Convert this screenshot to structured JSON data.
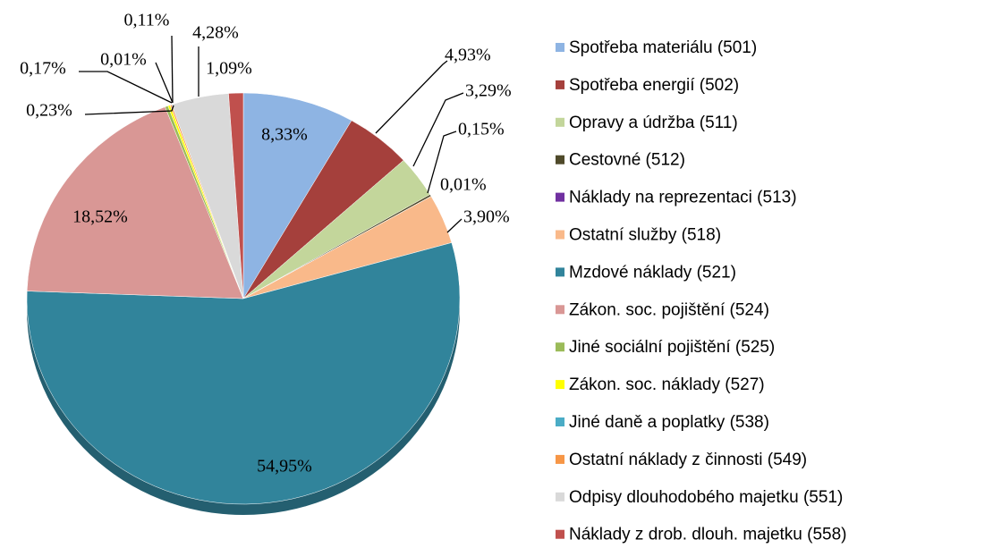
{
  "chart_data": {
    "type": "pie",
    "categories": [
      "Spotřeba materiálu (501)",
      "Spotřeba energií (502)",
      "Opravy a údržba (511)",
      "Cestovné (512)",
      "Náklady na reprezentaci (513)",
      "Ostatní služby (518)",
      "Mzdové náklady (521)",
      "Zákon. soc. pojištění (524)",
      "Jiné sociální pojištění (525)",
      "Zákon. soc. náklady (527)",
      "Jiné daně a poplatky (538)",
      "Ostatní náklady z činnosti (549)",
      "Odpisy dlouhodobého majetku (551)",
      "Náklady z drob. dlouh. majetku (558)"
    ],
    "values": [
      8.33,
      4.93,
      3.29,
      0.15,
      0.01,
      3.9,
      54.95,
      18.52,
      0.23,
      0.17,
      0.01,
      0.11,
      4.28,
      1.09
    ],
    "value_labels": [
      "8,33%",
      "4,93%",
      "3,29%",
      "0,15%",
      "0,01%",
      "3,90%",
      "54,95%",
      "18,52%",
      "0,23%",
      "0,17%",
      "0,01%",
      "0,11%",
      "4,28%",
      "1,09%"
    ],
    "colors": [
      "#8eb4e3",
      "#a5403c",
      "#c3d69b",
      "#4f4a2a",
      "#7030a0",
      "#f9b98a",
      "#31849b",
      "#d99795",
      "#9bbb59",
      "#ffff00",
      "#4bacc6",
      "#f79646",
      "#d9d9d9",
      "#c0504d"
    ],
    "legend": "right"
  }
}
